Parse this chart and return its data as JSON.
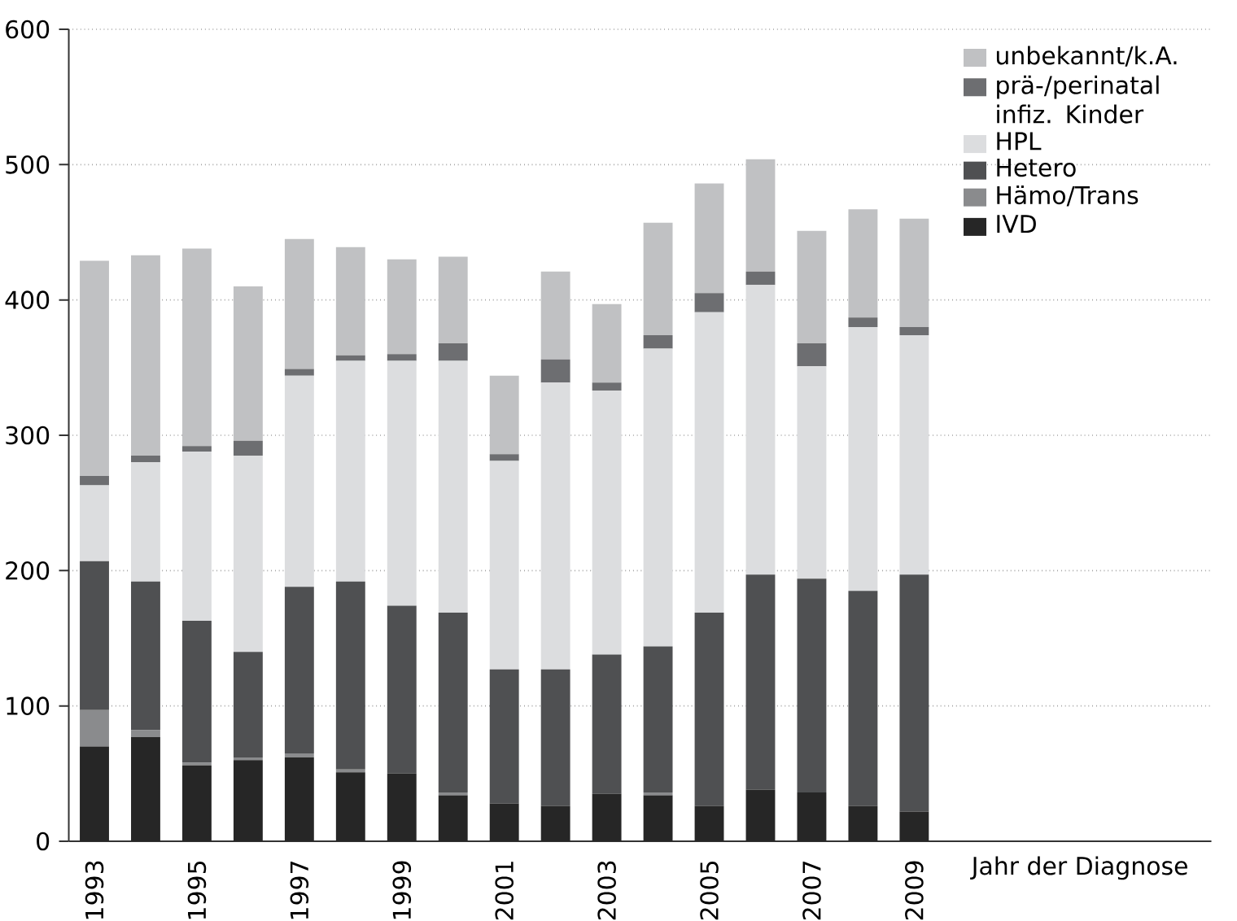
{
  "chart_data": {
    "type": "bar",
    "stacked": true,
    "xlabel": "Jahr der Diagnose",
    "categories": [
      "1993",
      null,
      "1995",
      null,
      "1997",
      null,
      "1999",
      null,
      "2001",
      null,
      "2003",
      null,
      "2005",
      null,
      "2007",
      null,
      "2009"
    ],
    "series": [
      {
        "name": "IVD",
        "color": "#262626",
        "values": [
          70,
          77,
          56,
          60,
          62,
          51,
          50,
          34,
          28,
          26,
          35,
          34,
          26,
          38,
          36,
          26,
          22
        ]
      },
      {
        "name": "Hämo/Trans",
        "color": "#8a8b8d",
        "values": [
          27,
          5,
          2,
          2,
          3,
          2,
          0,
          2,
          0,
          0,
          0,
          2,
          0,
          0,
          0,
          0,
          0
        ]
      },
      {
        "name": "Hetero",
        "color": "#4f5052",
        "values": [
          110,
          110,
          105,
          78,
          123,
          139,
          124,
          133,
          99,
          101,
          103,
          108,
          143,
          159,
          158,
          159,
          175
        ]
      },
      {
        "name": "HPL",
        "color": "#dcdddf",
        "values": [
          56,
          88,
          125,
          145,
          156,
          163,
          181,
          186,
          154,
          212,
          195,
          220,
          222,
          214,
          157,
          195,
          177
        ]
      },
      {
        "name": "prä-/perinatal infiz. Kinder",
        "color": "#6d6e71",
        "values": [
          7,
          5,
          4,
          11,
          5,
          4,
          5,
          13,
          5,
          17,
          6,
          10,
          14,
          10,
          17,
          7,
          6
        ]
      },
      {
        "name": "unbekannt/k.A.",
        "color": "#c0c1c3",
        "values": [
          159,
          148,
          146,
          114,
          96,
          80,
          70,
          64,
          58,
          65,
          58,
          83,
          81,
          83,
          83,
          80,
          80
        ]
      }
    ],
    "ylim": [
      0,
      600
    ],
    "yticks": [
      0,
      100,
      200,
      300,
      400,
      500,
      600
    ],
    "grid": "y",
    "legend": "top right"
  }
}
